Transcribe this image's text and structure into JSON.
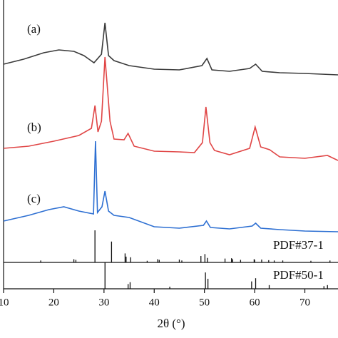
{
  "chart_data": {
    "type": "line",
    "x_label": "2θ (°)",
    "xlim": [
      10,
      76.6
    ],
    "xticks": [
      10,
      20,
      30,
      40,
      50,
      60,
      70
    ],
    "ylim": [
      0,
      368
    ],
    "series": [
      {
        "name": "(a)",
        "color": "#3a3a3a",
        "x": [
          10,
          14,
          18,
          21,
          24,
          26,
          28,
          29.5,
          30.2,
          30.9,
          32,
          35,
          40,
          45,
          49.5,
          50.5,
          51.5,
          55,
          59,
          60.2,
          61.5,
          65,
          70,
          76.6
        ],
        "values": [
          278,
          285,
          294,
          298,
          296,
          290,
          280,
          292,
          336,
          290,
          283,
          276,
          271,
          270,
          276,
          286,
          270,
          268,
          272,
          278,
          268,
          266,
          265,
          263
        ]
      },
      {
        "name": "(b)",
        "color": "#e04545",
        "x": [
          10,
          15,
          20,
          25,
          27.5,
          28.2,
          28.8,
          29.5,
          30.2,
          31.2,
          32,
          34,
          34.8,
          36,
          40,
          45,
          48,
          49.6,
          50.3,
          51.1,
          52,
          55,
          59,
          60.1,
          61.2,
          63,
          65,
          70,
          74.5,
          76.6
        ],
        "values": [
          160,
          163,
          170,
          178,
          188,
          220,
          183,
          198,
          288,
          198,
          173,
          172,
          181,
          163,
          156,
          155,
          154,
          168,
          218,
          168,
          157,
          151,
          160,
          190,
          162,
          158,
          148,
          146,
          150,
          143
        ]
      },
      {
        "name": "(c)",
        "color": "#2d6fd2",
        "x": [
          10,
          15,
          19,
          22,
          25,
          27.9,
          28.3,
          28.7,
          29.6,
          30.2,
          30.9,
          32,
          35,
          40,
          45,
          49.8,
          50.4,
          51.2,
          55,
          59.5,
          60.2,
          61.2,
          65,
          70,
          76.6
        ],
        "values": [
          58,
          66,
          74,
          78,
          72,
          68,
          170,
          70,
          78,
          100,
          72,
          66,
          63,
          50,
          48,
          52,
          58,
          49,
          47,
          51,
          55,
          48,
          46,
          44,
          43
        ]
      }
    ],
    "references": [
      {
        "name": "PDF#37-1",
        "ylim": [
          0,
          100
        ],
        "positions": [
          17.4,
          24.0,
          24.4,
          28.2,
          31.5,
          34.2,
          34.4,
          35.3,
          38.6,
          40.7,
          41.0,
          45.0,
          45.5,
          49.3,
          50.1,
          50.6,
          54.1,
          55.4,
          55.6,
          57.2,
          59.9,
          60.0,
          61.4,
          62.8,
          63.9,
          65.6,
          71.2,
          75.0
        ],
        "values": [
          6,
          10,
          8,
          100,
          65,
          28,
          18,
          16,
          5,
          10,
          8,
          9,
          6,
          20,
          26,
          14,
          12,
          13,
          10,
          8,
          10,
          8,
          9,
          7,
          6,
          6,
          5,
          6
        ]
      },
      {
        "name": "PDF#50-1",
        "ylim": [
          0,
          100
        ],
        "positions": [
          30.2,
          34.8,
          35.2,
          43.1,
          50.2,
          50.7,
          59.4,
          60.2,
          62.9,
          73.8,
          74.5
        ],
        "values": [
          100,
          18,
          25,
          8,
          62,
          38,
          28,
          40,
          14,
          10,
          14
        ]
      }
    ]
  }
}
